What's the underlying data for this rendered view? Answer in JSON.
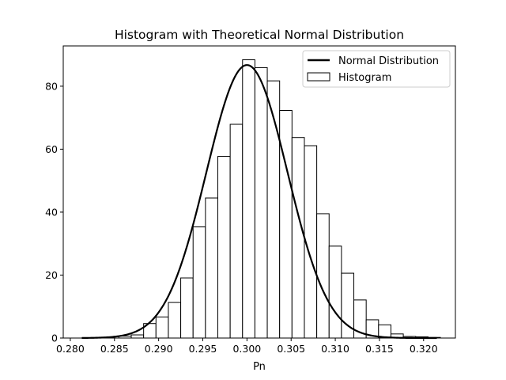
{
  "chart_data": {
    "type": "bar",
    "title": "Histogram with Theoretical Normal Distribution",
    "xlabel": "Pn",
    "ylabel": "",
    "xlim": [
      0.2792,
      0.3236
    ],
    "ylim": [
      0,
      92.8
    ],
    "xticks": [
      0.28,
      0.285,
      0.29,
      0.295,
      0.3,
      0.305,
      0.31,
      0.315,
      0.32
    ],
    "xtick_labels": [
      "0.280",
      "0.285",
      "0.290",
      "0.295",
      "0.300",
      "0.305",
      "0.310",
      "0.315",
      "0.320"
    ],
    "yticks": [
      0,
      20,
      40,
      60,
      80
    ],
    "ytick_labels": [
      "0",
      "20",
      "40",
      "60",
      "80"
    ],
    "grid": false,
    "legend_position": "top-right",
    "legend": [
      {
        "label": "Normal Distribution",
        "kind": "line"
      },
      {
        "label": "Histogram",
        "kind": "patch"
      }
    ],
    "histogram": {
      "name": "Histogram",
      "bin_edges": [
        0.2813,
        0.2827,
        0.2841,
        0.2855,
        0.2869,
        0.2883,
        0.2897,
        0.2911,
        0.2925,
        0.2939,
        0.2953,
        0.2967,
        0.2981,
        0.2995,
        0.3009,
        0.3023,
        0.3037,
        0.3051,
        0.3065,
        0.3079,
        0.3093,
        0.3107,
        0.3121,
        0.3135,
        0.3149,
        0.3163,
        0.3177,
        0.3191,
        0.3205,
        0.3219
      ],
      "counts": [
        0,
        0,
        0,
        0.6,
        1.0,
        4.6,
        6.7,
        11.3,
        19.1,
        35.3,
        44.5,
        57.7,
        67.9,
        88.4,
        85.9,
        81.7,
        72.3,
        63.7,
        61.1,
        39.5,
        29.2,
        20.6,
        12.1,
        5.8,
        4.2,
        1.3,
        0.5,
        0.4,
        0.2
      ],
      "edgecolor": "#000000",
      "facecolor": "#ffffff"
    },
    "series": [
      {
        "name": "Normal Distribution",
        "type": "line",
        "mean": 0.3,
        "std": 0.0046,
        "x_range": [
          0.2813,
          0.3215
        ],
        "color": "#000000"
      }
    ]
  }
}
